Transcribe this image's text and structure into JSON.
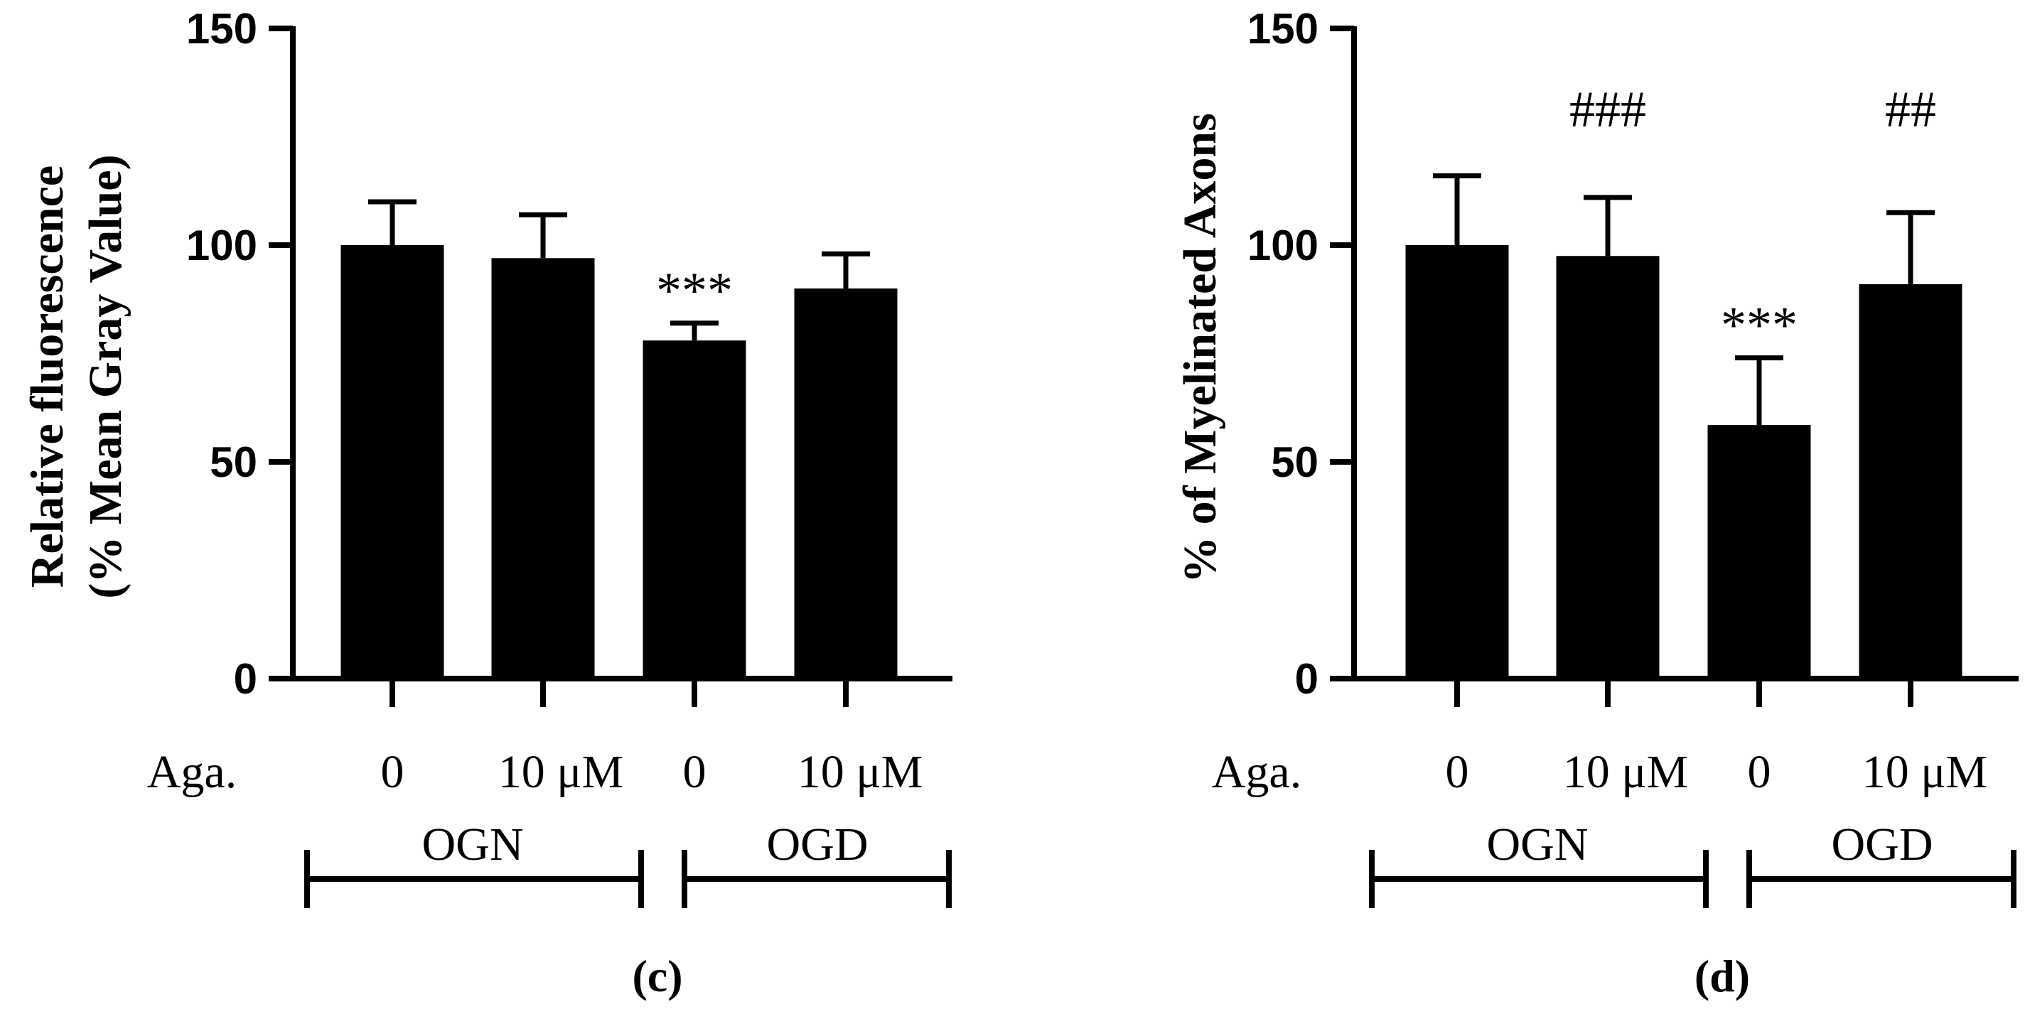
{
  "chart_data": [
    {
      "type": "bar",
      "panel_label": "(c)",
      "ylabel_lines": [
        "Relative fluorescence",
        "(% Mean Gray Value)"
      ],
      "ylim": [
        0,
        150
      ],
      "yticks": [
        "0",
        "50",
        "100",
        "150"
      ],
      "treatment_label": "Aga.",
      "categories": [
        "0",
        "10 μM",
        "0",
        "10 μM"
      ],
      "groups": [
        "OGN",
        "OGD"
      ],
      "values": [
        100,
        97,
        78,
        90
      ],
      "errors": [
        10,
        10,
        4,
        8
      ],
      "annotations": [
        "",
        "",
        "***",
        ""
      ]
    },
    {
      "type": "bar",
      "panel_label": "(d)",
      "ylabel_lines": [
        "% of Myelinated Axons"
      ],
      "ylim": [
        0,
        150
      ],
      "yticks": [
        "0",
        "50",
        "100",
        "150"
      ],
      "treatment_label": "Aga.",
      "categories": [
        "0",
        "10 μM",
        "0",
        "10 μM"
      ],
      "groups": [
        "OGN",
        "OGD"
      ],
      "values": [
        100,
        97.5,
        58.5,
        91
      ],
      "errors": [
        16,
        13.5,
        15.5,
        16.5
      ],
      "annotations": [
        "",
        "###",
        "***",
        "##"
      ]
    }
  ]
}
